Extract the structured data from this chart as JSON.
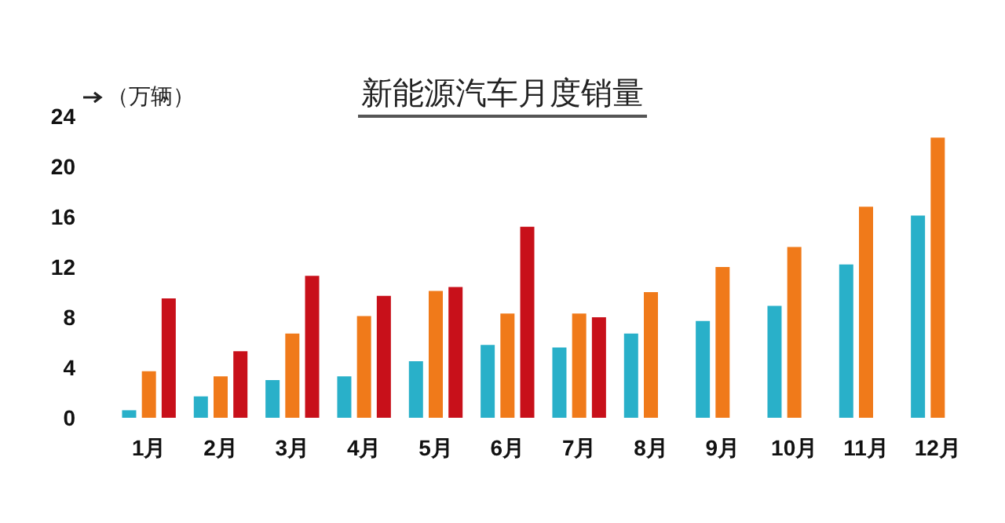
{
  "chart_data": {
    "type": "bar",
    "title": "新能源汽车月度销量",
    "ylabel": "（万辆）",
    "categories": [
      "1月",
      "2月",
      "3月",
      "4月",
      "5月",
      "6月",
      "7月",
      "8月",
      "9月",
      "10月",
      "11月",
      "12月"
    ],
    "series": [
      {
        "color": "#29b0c9",
        "values": [
          0.6,
          1.7,
          3.0,
          3.3,
          4.5,
          5.8,
          5.6,
          6.7,
          7.7,
          8.9,
          12.2,
          16.1
        ]
      },
      {
        "color": "#f07a1a",
        "values": [
          3.7,
          3.3,
          6.7,
          8.1,
          10.1,
          8.3,
          8.3,
          10.0,
          12.0,
          13.6,
          16.8,
          22.3
        ]
      },
      {
        "color": "#c8101a",
        "values": [
          9.5,
          5.3,
          11.3,
          9.7,
          10.4,
          15.2,
          8.0,
          null,
          null,
          null,
          null,
          null
        ]
      }
    ],
    "ylim": [
      0,
      24
    ],
    "yticks": [
      0,
      4,
      8,
      12,
      16,
      20,
      24
    ]
  }
}
